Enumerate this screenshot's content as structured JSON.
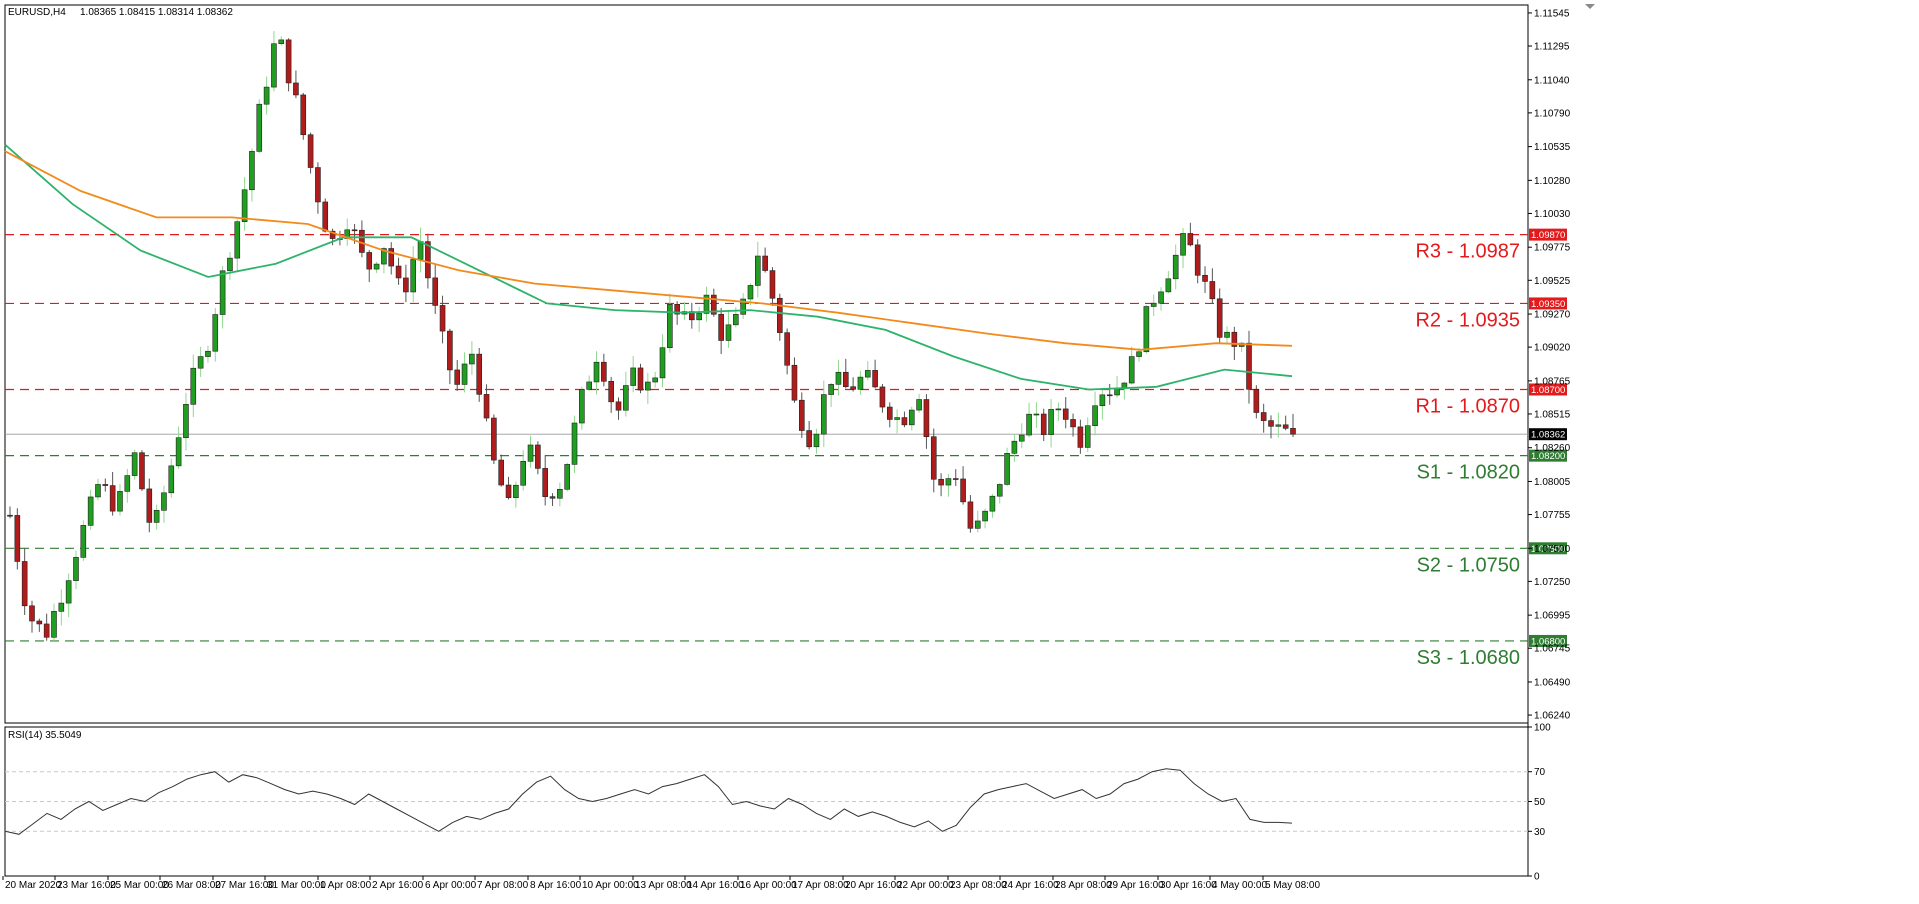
{
  "header": {
    "symbol": "EURUSD,H4",
    "ohlc": "1.08365 1.08415 1.08314 1.08362"
  },
  "rsi_header": "RSI(14) 35.5049",
  "colors": {
    "bull": "#1f9e1f",
    "bear": "#b01c1c",
    "ma_fast": "#2db36a",
    "ma_slow": "#f28a1c",
    "res": "#e31a1c",
    "sup": "#2e7d32",
    "rsi": "#333333",
    "grid": "#c8c8c8"
  },
  "chart_data": [
    {
      "type": "candlestick",
      "title": "EURUSD,H4",
      "ylim": [
        1.0618,
        1.11605
      ],
      "y_ticks": [
        "1.11545",
        "1.11295",
        "1.11040",
        "1.10790",
        "1.10535",
        "1.10280",
        "1.10030",
        "1.09775",
        "1.09525",
        "1.09270",
        "1.09020",
        "1.08765",
        "1.08515",
        "1.08260",
        "1.08005",
        "1.07755",
        "1.07500",
        "1.07250",
        "1.06995",
        "1.06745",
        "1.06490",
        "1.06240"
      ],
      "x_labels": [
        "20 Mar 2020",
        "23 Mar 16:00",
        "25 Mar 00:00",
        "26 Mar 08:00",
        "27 Mar 16:00",
        "31 Mar 00:00",
        "1 Apr 08:00",
        "2 Apr 16:00",
        "6 Apr 00:00",
        "7 Apr 08:00",
        "8 Apr 16:00",
        "10 Apr 00:00",
        "13 Apr 08:00",
        "14 Apr 16:00",
        "16 Apr 00:00",
        "17 Apr 08:00",
        "20 Apr 16:00",
        "22 Apr 00:00",
        "23 Apr 08:00",
        "24 Apr 16:00",
        "28 Apr 08:00",
        "29 Apr 16:00",
        "30 Apr 16:00",
        "4 May 00:00",
        "5 May 08:00"
      ],
      "price_path": [
        1.0775,
        1.07,
        1.0685,
        1.072,
        1.076,
        1.08,
        1.078,
        1.082,
        1.076,
        1.081,
        1.087,
        1.09,
        1.096,
        1.101,
        1.108,
        1.114,
        1.109,
        1.103,
        1.098,
        1.1,
        1.096,
        1.098,
        1.094,
        1.0985,
        1.092,
        1.087,
        1.09,
        1.082,
        1.078,
        1.083,
        1.079,
        1.08,
        1.086,
        1.09,
        1.085,
        1.088,
        1.087,
        1.093,
        1.092,
        1.094,
        1.091,
        1.0925,
        1.0975,
        1.093,
        1.086,
        1.083,
        1.088,
        1.087,
        1.088,
        1.086,
        1.0845,
        1.087,
        1.079,
        1.081,
        1.076,
        1.078,
        1.082,
        1.085,
        1.084,
        1.086,
        1.083,
        1.087,
        1.087,
        1.089,
        1.0935,
        1.096,
        1.0985,
        1.095,
        1.091,
        1.0905,
        1.0845,
        1.084,
        1.0836
      ],
      "current_price": "1.08362",
      "moving_averages": [
        {
          "id": "fast",
          "path": [
            1.1055,
            1.101,
            1.0975,
            1.0955,
            1.0965,
            1.0985,
            1.0985,
            1.096,
            1.0935,
            1.093,
            1.0928,
            1.093,
            1.0925,
            1.0915,
            1.0895,
            1.0878,
            1.087,
            1.0872,
            1.0885,
            1.088
          ]
        },
        {
          "id": "slow",
          "path": [
            1.105,
            1.102,
            1.1,
            1.1,
            1.0995,
            1.0975,
            1.096,
            1.095,
            1.0945,
            1.094,
            1.0935,
            1.0928,
            1.092,
            1.0912,
            1.0905,
            1.09,
            1.0905,
            1.0903
          ]
        }
      ],
      "levels": [
        {
          "name": "R3 - 1.0987",
          "badge": "1.09870",
          "value": 1.0987,
          "kind": "resistance"
        },
        {
          "name": "R2 - 1.0935",
          "badge": "1.09350",
          "value": 1.0935,
          "kind": "resistance"
        },
        {
          "name": "R1 - 1.0870",
          "badge": "1.08700",
          "value": 1.087,
          "kind": "resistance"
        },
        {
          "name": "S1 - 1.0820",
          "badge": "1.08200",
          "value": 1.082,
          "kind": "support"
        },
        {
          "name": "S2 - 1.0750",
          "badge": "1.07500",
          "value": 1.075,
          "kind": "support"
        },
        {
          "name": "S3 - 1.0680",
          "badge": "1.06800",
          "value": 1.068,
          "kind": "support"
        }
      ]
    },
    {
      "type": "line",
      "title": "RSI(14) 35.5049",
      "ylim": [
        0,
        100
      ],
      "y_ticks": [
        "100",
        "70",
        "50",
        "30",
        "0"
      ],
      "levels": [
        70,
        50,
        30
      ],
      "values": [
        30,
        28,
        35,
        42,
        38,
        45,
        50,
        44,
        48,
        52,
        50,
        56,
        60,
        65,
        68,
        70,
        63,
        68,
        66,
        62,
        58,
        55,
        57,
        55,
        52,
        48,
        55,
        50,
        45,
        40,
        35,
        30,
        36,
        40,
        38,
        42,
        45,
        55,
        63,
        67,
        58,
        52,
        50,
        52,
        55,
        58,
        55,
        60,
        62,
        65,
        68,
        60,
        48,
        50,
        47,
        45,
        52,
        48,
        42,
        38,
        45,
        40,
        43,
        40,
        36,
        33,
        37,
        30,
        34,
        46,
        55,
        58,
        60,
        62,
        57,
        52,
        55,
        58,
        52,
        55,
        62,
        65,
        70,
        72,
        71,
        62,
        55,
        50,
        52,
        38,
        36,
        36,
        35.5
      ]
    }
  ]
}
